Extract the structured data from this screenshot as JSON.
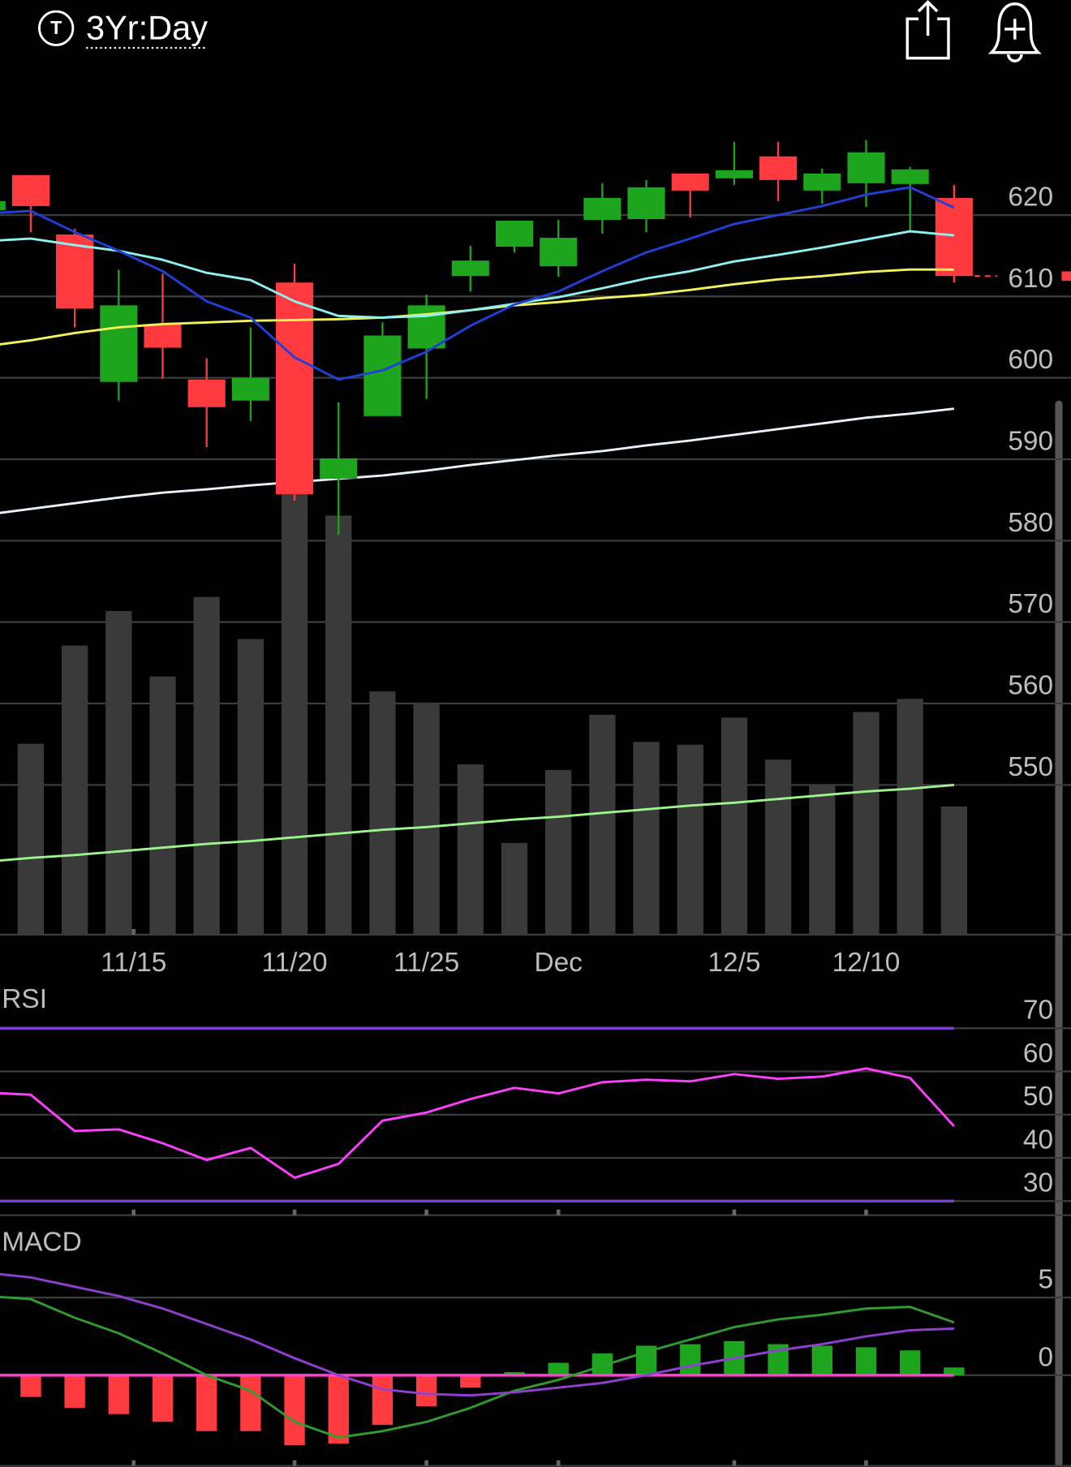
{
  "header": {
    "icon": "T",
    "timeframe": "3Yr:Day"
  },
  "chart_data": [
    {
      "type": "candlestick",
      "x": [
        -1,
        0,
        1,
        2,
        3,
        4,
        5,
        6,
        7,
        8,
        9,
        10,
        11,
        12,
        13,
        14,
        15,
        16,
        17,
        18,
        19,
        20,
        21
      ],
      "open": [
        620.6,
        624.9,
        617.6,
        599.5,
        606.6,
        599.8,
        597.2,
        611.7,
        587.6,
        595.3,
        603.6,
        612.5,
        616.1,
        613.7,
        619.4,
        619.5,
        625.1,
        624.5,
        627.2,
        623.0,
        623.9,
        623.8,
        622.1
      ],
      "high": [
        621.9,
        624.9,
        618.3,
        613.3,
        612.8,
        602.4,
        606.2,
        614.0,
        597.0,
        606.8,
        610.2,
        616.2,
        619.3,
        619.4,
        623.9,
        624.3,
        625.1,
        629.0,
        629.0,
        625.7,
        629.2,
        625.9,
        623.7
      ],
      "low": [
        620.4,
        617.9,
        606.2,
        597.2,
        599.9,
        591.5,
        594.7,
        584.9,
        580.7,
        595.3,
        597.4,
        610.6,
        615.4,
        612.4,
        617.7,
        617.9,
        619.7,
        623.7,
        621.7,
        621.4,
        621.0,
        617.9,
        611.7
      ],
      "close": [
        621.7,
        621.1,
        608.5,
        608.9,
        603.7,
        596.4,
        600.0,
        585.7,
        590.1,
        605.2,
        608.9,
        614.4,
        619.3,
        617.2,
        622.1,
        623.4,
        623.0,
        625.5,
        624.3,
        625.1,
        627.7,
        625.6,
        612.5
      ],
      "up_color": "#1ea51e",
      "down_color": "#ff3b3f",
      "series": [
        {
          "color": "#e8f0f8",
          "values": [
            583.2,
            583.9,
            584.6,
            585.3,
            585.9,
            586.3,
            586.8,
            587.2,
            587.6,
            588.0,
            588.6,
            589.3,
            589.9,
            590.5,
            591.0,
            591.7,
            592.3,
            593.0,
            593.7,
            594.4,
            595.1,
            595.6,
            596.2
          ]
        },
        {
          "color": "#f2f25a",
          "values": [
            603.9,
            604.6,
            605.5,
            606.2,
            606.6,
            606.8,
            607.0,
            607.1,
            607.2,
            607.4,
            607.8,
            608.3,
            608.9,
            609.3,
            609.8,
            610.2,
            610.8,
            611.5,
            612.1,
            612.5,
            613.0,
            613.3,
            613.3
          ]
        },
        {
          "color": "#8ff0f0",
          "values": [
            616.8,
            617.1,
            616.3,
            615.6,
            614.5,
            612.9,
            612.0,
            609.4,
            607.6,
            607.4,
            607.6,
            608.3,
            609.1,
            609.9,
            611.0,
            612.2,
            613.1,
            614.3,
            615.1,
            616.0,
            617.0,
            618.0,
            617.5
          ]
        },
        {
          "color": "#2040d8",
          "values": [
            620.2,
            620.5,
            617.9,
            615.6,
            613.1,
            609.4,
            607.4,
            602.5,
            599.8,
            600.9,
            603.2,
            606.4,
            609.0,
            610.6,
            613.1,
            615.4,
            617.1,
            618.9,
            620.0,
            621.1,
            622.5,
            623.4,
            620.9
          ]
        }
      ],
      "volume": {
        "color": "#3a3a3a",
        "ylim": [
          0,
          900
        ],
        "values": [
          null,
          205,
          310,
          347,
          277,
          362,
          317,
          480,
          449,
          261,
          249,
          183,
          99,
          177,
          236,
          207,
          204,
          233,
          188,
          161,
          239,
          253,
          138
        ],
        "ma": {
          "color": "#9cf58a",
          "values": [
            79,
            83,
            86,
            90,
            94,
            98,
            101,
            105,
            109,
            113,
            116,
            120,
            124,
            127,
            131,
            135,
            139,
            142,
            146,
            150,
            154,
            157,
            161
          ]
        }
      },
      "last_price_color": "#ff3b3f",
      "xlim": [
        -0.7,
        23.66
      ],
      "ylim": [
        531.5,
        634.9
      ],
      "xticks": [
        {
          "value": 2.34,
          "label": "11/15"
        },
        {
          "value": 6,
          "label": "11/20"
        },
        {
          "value": 9,
          "label": "11/25"
        },
        {
          "value": 12,
          "label": "Dec"
        },
        {
          "value": 16,
          "label": "12/5"
        },
        {
          "value": 19,
          "label": "12/10"
        }
      ],
      "yticks": [
        550,
        560,
        570,
        580,
        590,
        600,
        610,
        620
      ],
      "grid": true
    },
    {
      "type": "line",
      "title": "RSI",
      "x": [
        -1,
        0,
        1,
        2,
        3,
        4,
        5,
        6,
        7,
        8,
        9,
        10,
        11,
        12,
        13,
        14,
        15,
        16,
        17,
        18,
        19,
        20,
        21
      ],
      "series": [
        {
          "color": "#ff40ff",
          "values": [
            55.1,
            54.6,
            46.2,
            46.6,
            43.4,
            39.5,
            42.3,
            35.4,
            38.6,
            48.6,
            50.5,
            53.6,
            56.2,
            54.9,
            57.5,
            58.1,
            57.7,
            59.4,
            58.3,
            58.8,
            60.7,
            58.5,
            47.3
          ]
        }
      ],
      "bands": [
        30,
        70
      ],
      "band_color": "#7a3fc8",
      "xlim": [
        -0.7,
        23.66
      ],
      "ylim": [
        26.5,
        80.2
      ],
      "yticks": [
        30,
        40,
        50,
        60,
        70
      ],
      "grid": true
    },
    {
      "type": "macd",
      "title": "MACD",
      "x": [
        -1,
        0,
        1,
        2,
        3,
        4,
        5,
        6,
        7,
        8,
        9,
        10,
        11,
        12,
        13,
        14,
        15,
        16,
        17,
        18,
        19,
        20,
        21
      ],
      "series": [
        {
          "color": "#2e9e2e",
          "values": [
            5.1,
            4.9,
            3.7,
            2.7,
            1.4,
            0,
            -1.0,
            -3.0,
            -4.0,
            -3.6,
            -3.0,
            -2.1,
            -1.0,
            -0.3,
            0.6,
            1.5,
            2.3,
            3.1,
            3.6,
            3.9,
            4.3,
            4.4,
            3.4
          ]
        },
        {
          "color": "#9040d0",
          "values": [
            6.6,
            6.3,
            5.7,
            5.1,
            4.3,
            3.3,
            2.3,
            1.1,
            0,
            -0.9,
            -1.2,
            -1.3,
            -1.1,
            -0.8,
            -0.5,
            0,
            0.6,
            1.1,
            1.6,
            2.0,
            2.5,
            2.9,
            3.0
          ]
        }
      ],
      "histogram": {
        "up_color": "#1ea51e",
        "down_color": "#ff3b3f",
        "values": [
          null,
          -1.4,
          -2.1,
          -2.5,
          -3.0,
          -3.6,
          -3.6,
          -4.5,
          -4.4,
          -3.2,
          -2.0,
          -0.8,
          0.2,
          0.8,
          1.4,
          1.9,
          2.0,
          2.2,
          2.0,
          1.9,
          1.8,
          1.6,
          0.5
        ]
      },
      "zero_line_color": "#ff40d0",
      "xlim": [
        -0.7,
        23.66
      ],
      "ylim": [
        -5.9,
        9.64
      ],
      "yticks": [
        0,
        5
      ],
      "grid": true
    }
  ]
}
